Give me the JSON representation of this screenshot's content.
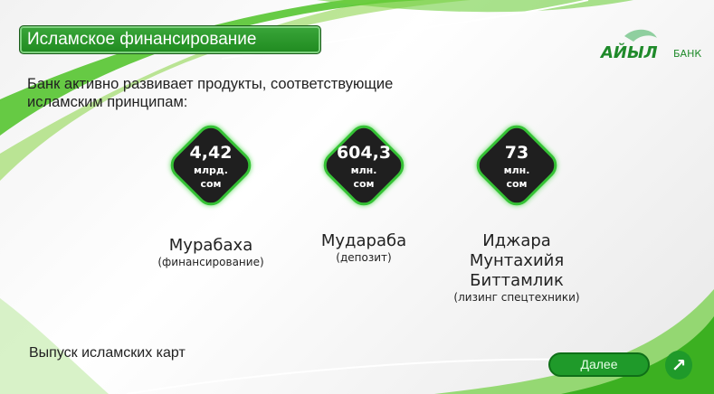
{
  "header": {
    "title": "Исламское финансирование",
    "logo_text": "АЙЫЛ БАНК"
  },
  "intro": "Банк активно развивает продукты, соответствующие исламским принципам:",
  "stats": [
    {
      "value": "4,42",
      "unit1": "млрд.",
      "unit2": "сом",
      "name": "Мурабаха",
      "sub": "(финансирование)"
    },
    {
      "value": "604,3",
      "unit1": "млн.",
      "unit2": "сом",
      "name": "Мудараба",
      "sub": "(депозит)"
    },
    {
      "value": "73",
      "unit1": "млн.",
      "unit2": "сом",
      "name": "Иджара Мунтахийя Биттамлик",
      "sub": "(лизинг спецтехники)"
    }
  ],
  "cards_text": "Выпуск исламских карт",
  "next_label": "Далее",
  "icons": {
    "next": "arrow-up-right-icon"
  },
  "colors": {
    "accent": "#1f9a2a",
    "diamond": "#1f1f1f",
    "glow": "#35c235"
  }
}
